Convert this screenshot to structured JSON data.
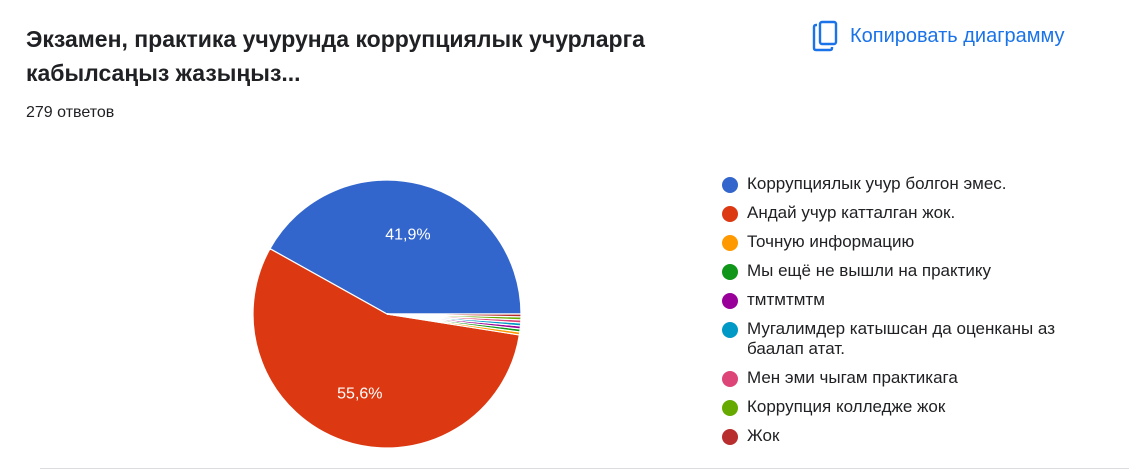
{
  "header": {
    "title": "Экзамен, практика учурунда коррупциялык учурларга кабылсаңыз жазыңыз...",
    "response_count": "279 ответов",
    "copy_label": "Копировать диаграмму"
  },
  "colors": {
    "accent": "#1a73e8"
  },
  "chart_data": {
    "type": "pie",
    "title": "Экзамен, практика учурунда коррупциялык учурларга кабылсаңыз жазыңыз...",
    "categories": [
      "Коррупциялык учур болгон эмес.",
      "Андай учур катталган жок.",
      "Точную информацию",
      "Мы ещё не вышли на практику",
      "тмтмтмтм",
      "Мугалимдер катышсан да оценканы аз баалап атат.",
      "Мен эми чыгам практикага",
      "Коррупция колледже жок",
      "Жок"
    ],
    "values": [
      41.9,
      55.6,
      0.36,
      0.36,
      0.36,
      0.36,
      0.36,
      0.36,
      0.34
    ],
    "data_labels": [
      "41,9%",
      "55,6%",
      "",
      "",
      "",
      "",
      "",
      "",
      ""
    ],
    "colors": [
      "#3366cc",
      "#dc3912",
      "#ff9900",
      "#109618",
      "#990099",
      "#0099c6",
      "#dd4477",
      "#66aa00",
      "#b82e2e"
    ],
    "legend_position": "right"
  }
}
